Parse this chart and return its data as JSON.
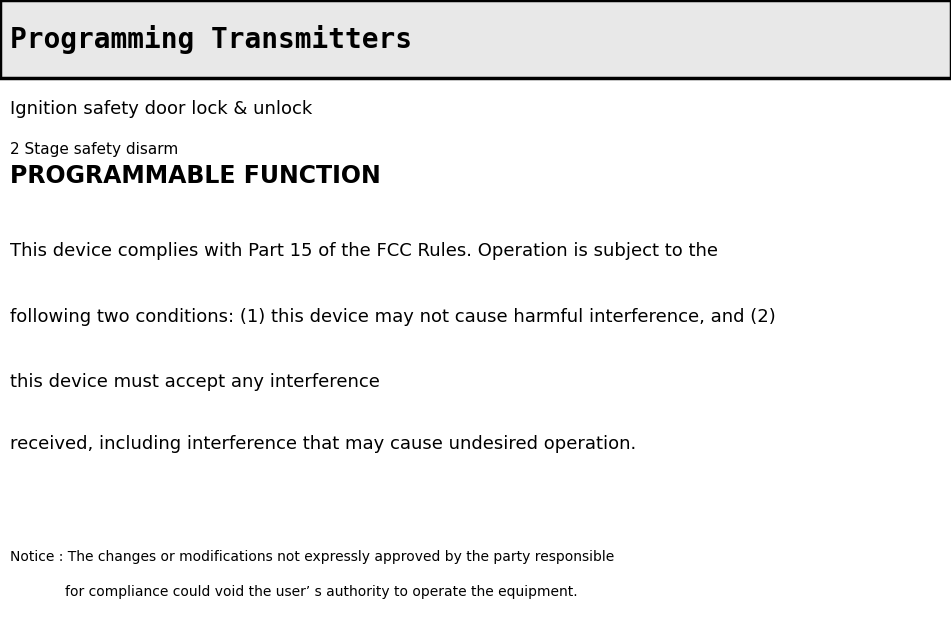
{
  "title": "Programming Transmitters",
  "title_fontsize": 20,
  "title_bg_color": "#e8e8e8",
  "title_border_color": "#000000",
  "body_bg_color": "#ffffff",
  "line1": "Ignition safety door lock & unlock",
  "line1_fontsize": 13,
  "line2": "2 Stage safety disarm",
  "line2_fontsize": 11,
  "line3": "PROGRAMMABLE FUNCTION",
  "line3_fontsize": 17,
  "fcc_line1": "This device complies with Part 15 of the FCC Rules. Operation is subject to the",
  "fcc_line2": "following two conditions: (1) this device may not cause harmful interference, and (2)",
  "fcc_line3": "this device must accept any interference",
  "fcc_line4": "received, including interference that may cause undesired operation.",
  "fcc_fontsize": 13,
  "notice_line1": "Notice : The changes or modifications not expressly approved by the party responsible",
  "notice_line2": "for compliance could void the user’ s authority to operate the equipment.",
  "notice_fontsize": 10,
  "text_color": "#000000",
  "fig_width": 9.51,
  "fig_height": 6.31,
  "dpi": 100
}
